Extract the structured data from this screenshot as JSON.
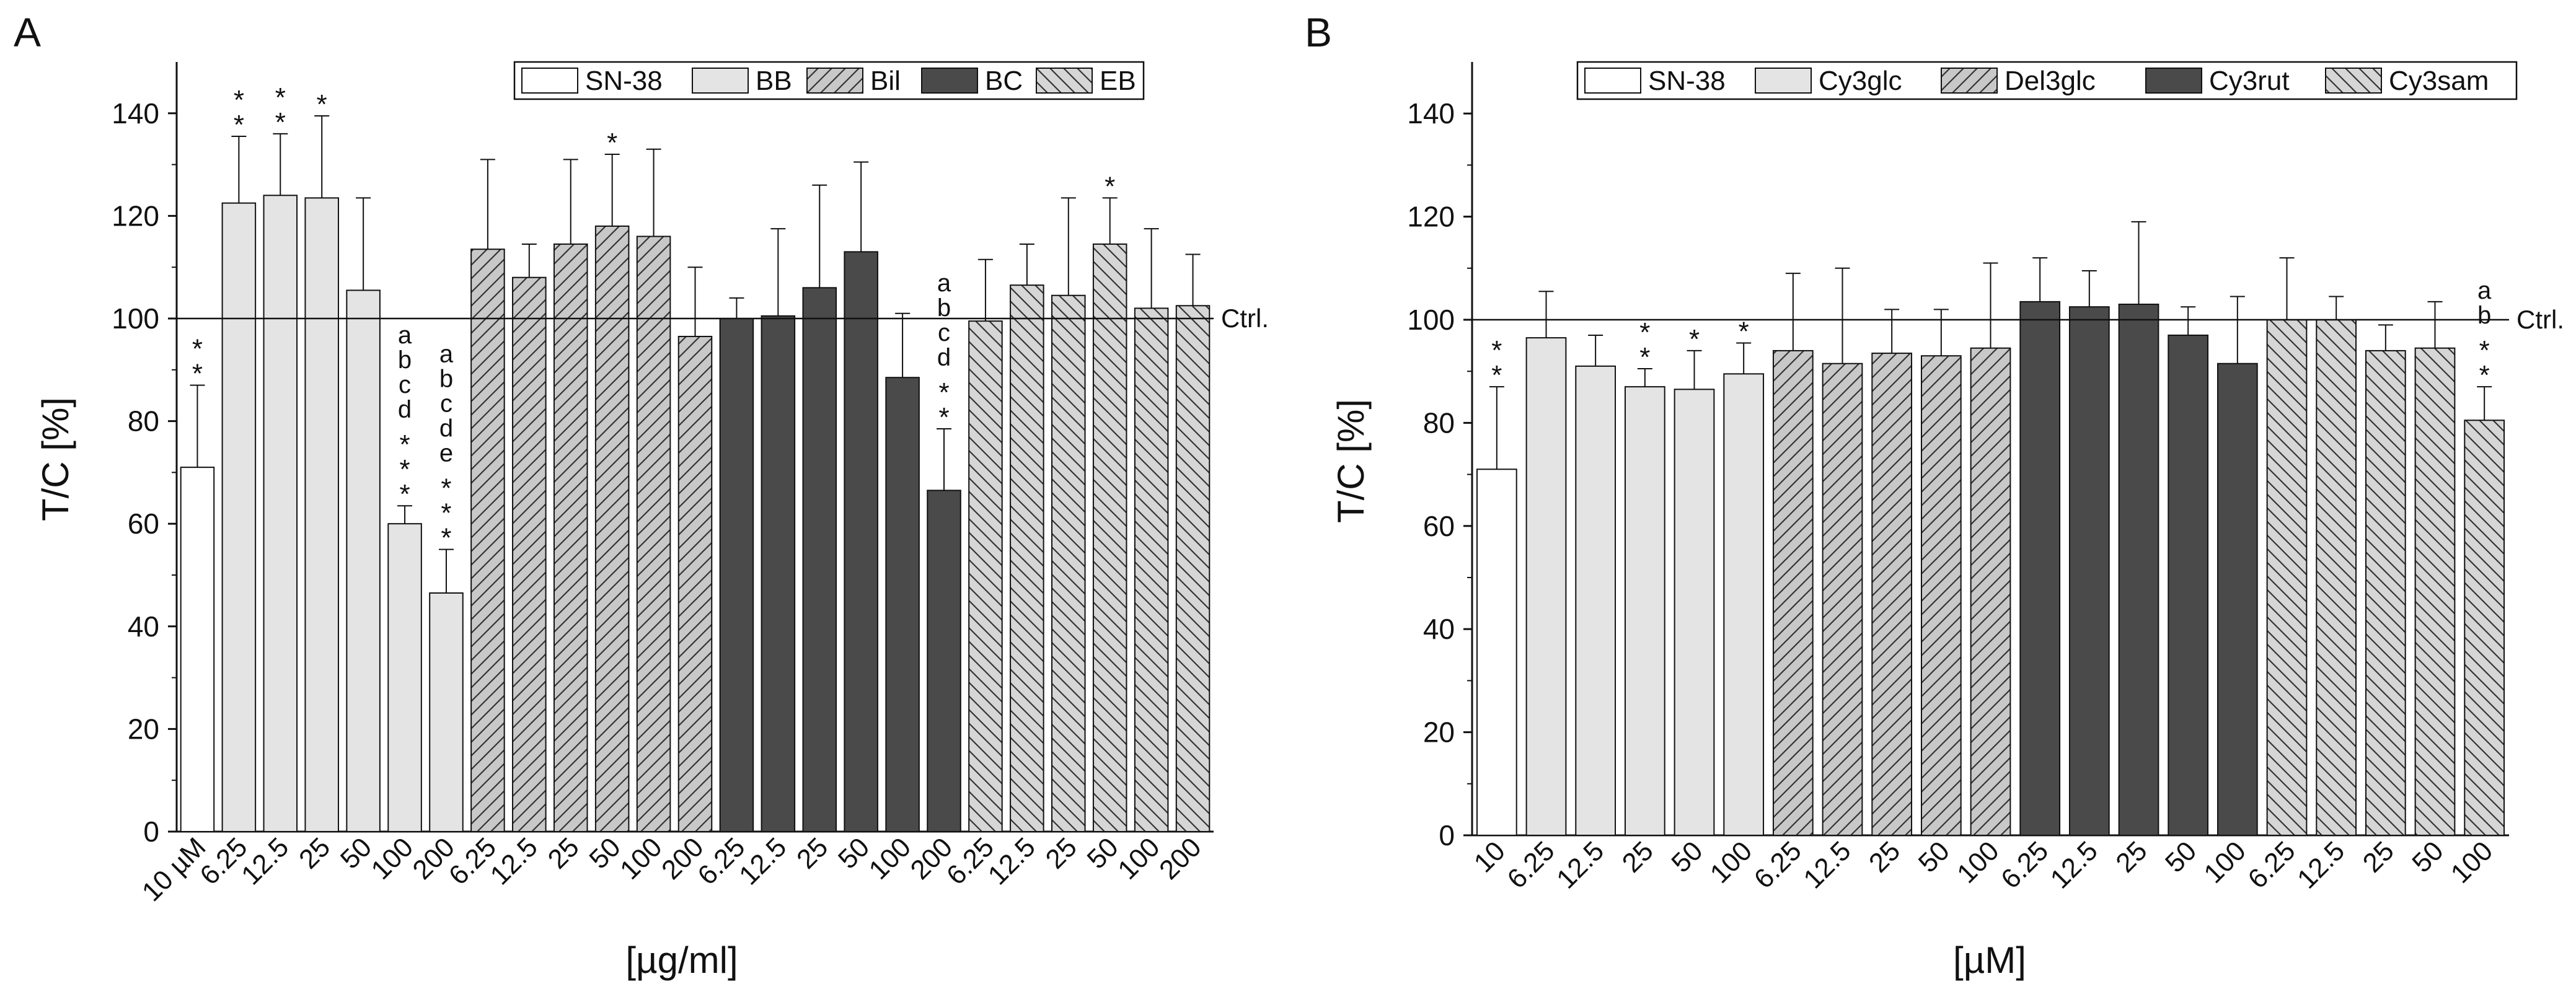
{
  "colors": {
    "white": "#ffffff",
    "light": "#e4e4e4",
    "dark": "#4a4a4a",
    "hatch_fill": "#c8c8c8",
    "hatch_fill_eb": "#d6d6d6",
    "axis": "#111111"
  },
  "chart_data": [
    {
      "panel_label": "A",
      "type": "bar",
      "ylabel": "T/C [%]",
      "xlabel": "[µg/ml]",
      "ylim": [
        0,
        150
      ],
      "yticks": [
        0,
        20,
        40,
        60,
        80,
        100,
        120,
        140
      ],
      "reference_line": {
        "value": 100,
        "label": "Ctrl."
      },
      "legend": [
        {
          "name": "SN-38",
          "pattern": "white"
        },
        {
          "name": "BB",
          "pattern": "light"
        },
        {
          "name": "Bil",
          "pattern": "hatch_fwd"
        },
        {
          "name": "BC",
          "pattern": "dark"
        },
        {
          "name": "EB",
          "pattern": "hatch_back"
        }
      ],
      "groups": [
        {
          "name": "SN-38",
          "pattern": "white",
          "categories": [
            "10 µM"
          ],
          "values": [
            71
          ],
          "errors": [
            16
          ],
          "annotations": [
            [
              "*",
              "*"
            ]
          ]
        },
        {
          "name": "BB",
          "pattern": "light",
          "categories": [
            "6.25",
            "12.5",
            "25",
            "50",
            "100",
            "200"
          ],
          "values": [
            122.5,
            124,
            123.5,
            105.5,
            60,
            46.5
          ],
          "errors": [
            13,
            12,
            16,
            18,
            3.5,
            8.5
          ],
          "annotations": [
            [
              "*",
              "*"
            ],
            [
              "*",
              "*"
            ],
            [
              "*"
            ],
            [],
            [
              "a",
              "b",
              "c",
              "d",
              "*",
              "*",
              "*"
            ],
            [
              "a",
              "b",
              "c",
              "d",
              "e",
              "*",
              "*",
              "*"
            ]
          ]
        },
        {
          "name": "Bil",
          "pattern": "hatch_fwd",
          "categories": [
            "6.25",
            "12.5",
            "25",
            "50",
            "100",
            "200"
          ],
          "values": [
            113.5,
            108,
            114.5,
            118,
            116,
            96.5
          ],
          "errors": [
            17.5,
            6.5,
            16.5,
            14,
            17,
            13.5
          ],
          "annotations": [
            [],
            [],
            [],
            [
              "*"
            ],
            [],
            []
          ]
        },
        {
          "name": "BC",
          "pattern": "dark",
          "categories": [
            "6.25",
            "12.5",
            "25",
            "50",
            "100",
            "200"
          ],
          "values": [
            100,
            100.5,
            106,
            113,
            88.5,
            66.5
          ],
          "errors": [
            4,
            17,
            20,
            17.5,
            12.5,
            12
          ],
          "annotations": [
            [],
            [],
            [],
            [],
            [],
            [
              "a",
              "b",
              "c",
              "d",
              "*",
              "*"
            ]
          ]
        },
        {
          "name": "EB",
          "pattern": "hatch_back",
          "categories": [
            "6.25",
            "12.5",
            "25",
            "50",
            "100",
            "200"
          ],
          "values": [
            99.5,
            106.5,
            104.5,
            114.5,
            102,
            102.5
          ],
          "errors": [
            12,
            8,
            19,
            9,
            15.5,
            10
          ],
          "annotations": [
            [],
            [],
            [],
            [
              "*"
            ],
            [],
            []
          ]
        }
      ]
    },
    {
      "panel_label": "B",
      "type": "bar",
      "ylabel": "T/C [%]",
      "xlabel": "[µM]",
      "ylim": [
        0,
        150
      ],
      "yticks": [
        0,
        20,
        40,
        60,
        80,
        100,
        120,
        140
      ],
      "reference_line": {
        "value": 100,
        "label": "Ctrl."
      },
      "legend": [
        {
          "name": "SN-38",
          "pattern": "white"
        },
        {
          "name": "Cy3glc",
          "pattern": "light"
        },
        {
          "name": "Del3glc",
          "pattern": "hatch_fwd"
        },
        {
          "name": "Cy3rut",
          "pattern": "dark"
        },
        {
          "name": "Cy3sam",
          "pattern": "hatch_back"
        }
      ],
      "groups": [
        {
          "name": "SN-38",
          "pattern": "white",
          "categories": [
            "10"
          ],
          "values": [
            71
          ],
          "errors": [
            16
          ],
          "annotations": [
            [
              "*",
              "*"
            ]
          ]
        },
        {
          "name": "Cy3glc",
          "pattern": "light",
          "categories": [
            "6.25",
            "12.5",
            "25",
            "50",
            "100"
          ],
          "values": [
            96.5,
            91,
            87,
            86.5,
            89.5
          ],
          "errors": [
            9,
            6,
            3.5,
            7.5,
            6
          ],
          "annotations": [
            [],
            [],
            [
              "*",
              "*"
            ],
            [
              "*"
            ],
            [
              "*"
            ]
          ]
        },
        {
          "name": "Del3glc",
          "pattern": "hatch_fwd",
          "categories": [
            "6.25",
            "12.5",
            "25",
            "50",
            "100"
          ],
          "values": [
            94,
            91.5,
            93.5,
            93,
            94.5
          ],
          "errors": [
            15,
            18.5,
            8.5,
            9,
            16.5
          ],
          "annotations": [
            [],
            [],
            [],
            [],
            []
          ]
        },
        {
          "name": "Cy3rut",
          "pattern": "dark",
          "categories": [
            "6.25",
            "12.5",
            "25",
            "50",
            "100"
          ],
          "values": [
            103.5,
            102.5,
            103,
            97,
            91.5
          ],
          "errors": [
            8.5,
            7,
            16,
            5.5,
            13
          ],
          "annotations": [
            [],
            [],
            [],
            [],
            []
          ]
        },
        {
          "name": "Cy3sam",
          "pattern": "hatch_back",
          "categories": [
            "6.25",
            "12.5",
            "25",
            "50",
            "100"
          ],
          "values": [
            100,
            100,
            94,
            94.5,
            80.5
          ],
          "errors": [
            12,
            4.5,
            5,
            9,
            6.5
          ],
          "annotations": [
            [],
            [],
            [],
            [],
            [
              "a",
              "b",
              "*",
              "*"
            ]
          ]
        }
      ]
    }
  ]
}
